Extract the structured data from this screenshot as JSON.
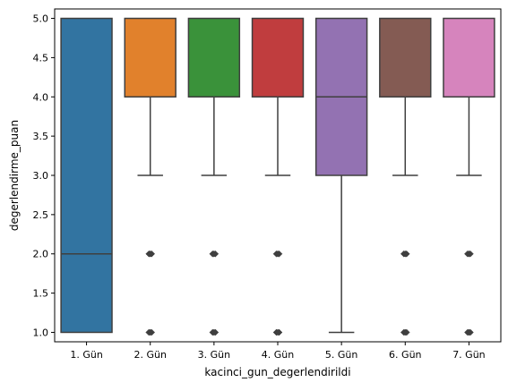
{
  "chart_data": {
    "type": "box",
    "title": "",
    "xlabel": "kacinci_gun_degerlendirildi",
    "ylabel": "degerlendirme_puan",
    "ylim": [
      0.88,
      5.12
    ],
    "yticks": [
      1.0,
      1.5,
      2.0,
      2.5,
      3.0,
      3.5,
      4.0,
      4.5,
      5.0
    ],
    "ytick_labels": [
      "1.0",
      "1.5",
      "2.0",
      "2.5",
      "3.0",
      "3.5",
      "4.0",
      "4.5",
      "5.0"
    ],
    "grid": false,
    "legend": "none",
    "categories": [
      "1. Gün",
      "2. Gün",
      "3. Gün",
      "4. Gün",
      "5. Gün",
      "6. Gün",
      "7. Gün"
    ],
    "boxes": [
      {
        "category": "1. Gün",
        "whisker_low": 1,
        "q1": 1,
        "median": 2,
        "q3": 5,
        "whisker_high": 5,
        "outliers": [],
        "color": "#3274a1"
      },
      {
        "category": "2. Gün",
        "whisker_low": 3,
        "q1": 4,
        "median": 4,
        "q3": 5,
        "whisker_high": 5,
        "outliers": [
          1,
          2
        ],
        "color": "#e1812c"
      },
      {
        "category": "3. Gün",
        "whisker_low": 3,
        "q1": 4,
        "median": 4,
        "q3": 5,
        "whisker_high": 5,
        "outliers": [
          1,
          2
        ],
        "color": "#3a923a"
      },
      {
        "category": "4. Gün",
        "whisker_low": 3,
        "q1": 4,
        "median": 4,
        "q3": 5,
        "whisker_high": 5,
        "outliers": [
          1,
          2
        ],
        "color": "#c03d3e"
      },
      {
        "category": "5. Gün",
        "whisker_low": 1,
        "q1": 3,
        "median": 4,
        "q3": 5,
        "whisker_high": 5,
        "outliers": [],
        "color": "#9372b2"
      },
      {
        "category": "6. Gün",
        "whisker_low": 3,
        "q1": 4,
        "median": 4,
        "q3": 5,
        "whisker_high": 5,
        "outliers": [
          1,
          2
        ],
        "color": "#845b53"
      },
      {
        "category": "7. Gün",
        "whisker_low": 3,
        "q1": 4,
        "median": 4,
        "q3": 5,
        "whisker_high": 5,
        "outliers": [
          1,
          2
        ],
        "color": "#d684bd"
      }
    ],
    "line_color": "#3f3f3f"
  }
}
